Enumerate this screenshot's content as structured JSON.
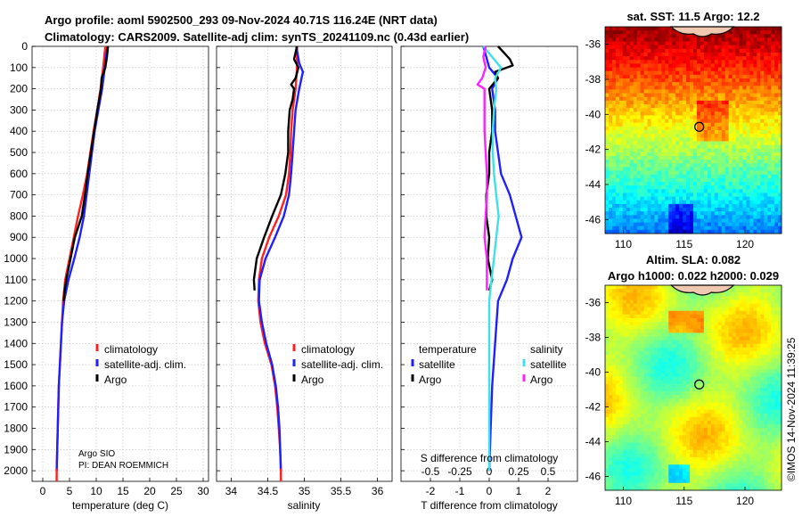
{
  "header": {
    "title_line1": "Argo profile: aoml 5902500_293 09-Nov-2024 40.71S 116.24E (NRT data)",
    "title_line2": "Climatology: CARS2009. Satellite-adj clim: synTS_20241109.nc (0.43d earlier)"
  },
  "credits": {
    "institution": "Argo SIO",
    "pi": "PI: DEAN ROEMMICH",
    "stamp": "©IMOS 14-Nov-2024 11:39:25"
  },
  "colors": {
    "climatology": "#ff2020",
    "satellite": "#1f1fff",
    "argo": "#000000",
    "sat_s": "#40e0e8",
    "argo_s": "#ff20ff"
  },
  "chart_data": [
    {
      "type": "line",
      "title": "",
      "xlabel": "temperature (deg C)",
      "ylabel": "",
      "xlim": [
        -2,
        31
      ],
      "ylim": [
        2050,
        0
      ],
      "xticks": [
        "0",
        "5",
        "10",
        "15",
        "20",
        "25",
        "30"
      ],
      "yticks": [
        "0",
        "100",
        "200",
        "300",
        "400",
        "500",
        "600",
        "700",
        "800",
        "900",
        "1000",
        "1100",
        "1200",
        "1300",
        "1400",
        "1500",
        "1600",
        "1700",
        "1800",
        "1900",
        "2000"
      ],
      "legend": [
        "climatology",
        "satellite-adj. clim.",
        "Argo"
      ],
      "series": [
        {
          "name": "climatology",
          "color": "#ff2020",
          "y": [
            0,
            100,
            200,
            300,
            400,
            500,
            600,
            700,
            800,
            900,
            1000,
            1100,
            1200,
            1300,
            1400,
            1500,
            1600,
            1700,
            1800,
            1900,
            2000
          ],
          "x": [
            11.7,
            11.3,
            10.8,
            10.2,
            9.5,
            8.9,
            8.3,
            7.5,
            6.6,
            5.8,
            5.0,
            4.2,
            3.8,
            3.6,
            3.4,
            3.2,
            3.0,
            2.9,
            2.8,
            2.7,
            2.6
          ]
        },
        {
          "name": "satellite-adj. clim.",
          "color": "#1f1fff",
          "y": [
            0,
            100,
            200,
            300,
            400,
            500,
            600,
            700,
            800,
            900,
            1000,
            1100,
            1200,
            1300,
            1400,
            1500,
            1600,
            1700,
            1800,
            1900,
            2000
          ],
          "x": [
            12.1,
            11.6,
            11.1,
            10.4,
            9.7,
            9.2,
            8.7,
            8.2,
            7.7,
            6.9,
            5.9,
            4.8,
            4.0,
            3.6,
            3.4,
            3.2,
            3.0,
            2.9,
            2.8,
            2.7,
            2.6
          ]
        },
        {
          "name": "Argo",
          "color": "#000000",
          "y": [
            0,
            50,
            100,
            150,
            200,
            300,
            400,
            500,
            600,
            700,
            800,
            900,
            1000,
            1100,
            1150,
            1200
          ],
          "x": [
            12.2,
            12.0,
            11.7,
            11.0,
            10.9,
            10.2,
            9.6,
            9.0,
            8.4,
            7.9,
            7.3,
            6.0,
            5.2,
            4.4,
            4.1,
            3.9
          ]
        }
      ]
    },
    {
      "type": "line",
      "xlabel": "salinity",
      "xlim": [
        33.8,
        36.2
      ],
      "ylim": [
        2050,
        0
      ],
      "xticks": [
        "34",
        "34.5",
        "35",
        "35.5",
        "36"
      ],
      "legend": [
        "climatology",
        "satellite-adj. clim.",
        "Argo"
      ],
      "series": [
        {
          "name": "climatology",
          "color": "#ff2020",
          "y": [
            0,
            100,
            200,
            300,
            400,
            500,
            600,
            700,
            800,
            900,
            1000,
            1100,
            1200,
            1300,
            1400,
            1500,
            1600,
            1700,
            1800,
            1900,
            2000
          ],
          "x": [
            34.9,
            34.9,
            34.88,
            34.84,
            34.82,
            34.81,
            34.79,
            34.75,
            34.65,
            34.52,
            34.42,
            34.38,
            34.37,
            34.4,
            34.46,
            34.55,
            34.6,
            34.63,
            34.65,
            34.67,
            34.68
          ]
        },
        {
          "name": "satellite-adj. clim.",
          "color": "#1f1fff",
          "y": [
            0,
            80,
            120,
            200,
            300,
            400,
            500,
            600,
            700,
            800,
            900,
            1000,
            1100,
            1200,
            1300,
            1400,
            1500,
            1600,
            1700,
            1800,
            1900,
            2000
          ],
          "x": [
            34.89,
            34.93,
            34.98,
            34.93,
            34.88,
            34.86,
            34.84,
            34.82,
            34.79,
            34.72,
            34.6,
            34.47,
            34.39,
            34.38,
            34.42,
            34.48,
            34.56,
            34.61,
            34.64,
            34.66,
            34.67,
            34.68
          ]
        },
        {
          "name": "Argo",
          "color": "#000000",
          "y": [
            0,
            60,
            100,
            150,
            180,
            200,
            250,
            300,
            400,
            500,
            600,
            700,
            800,
            900,
            1000,
            1100,
            1150
          ],
          "x": [
            34.9,
            34.86,
            34.92,
            34.88,
            34.82,
            34.86,
            34.84,
            34.8,
            34.78,
            34.78,
            34.74,
            34.68,
            34.56,
            34.45,
            34.35,
            34.31,
            34.32
          ]
        }
      ]
    },
    {
      "type": "line",
      "xlabel": "T difference from climatology",
      "xlabel2": "S difference from climatology",
      "xlim": [
        -3,
        3
      ],
      "ylim": [
        2050,
        0
      ],
      "xticks": [
        "-2",
        "-1",
        "0",
        "1",
        "2"
      ],
      "xticks_s": [
        "-0.5",
        "-0.25",
        "0",
        "0.25",
        "0.5"
      ],
      "legend_headers": [
        "temperature",
        "salinity"
      ],
      "legend_t": [
        "satellite",
        "Argo"
      ],
      "legend_s": [
        "satellite",
        "Argo"
      ],
      "series": [
        {
          "name": "T satellite",
          "color": "#1f1fff",
          "y": [
            0,
            50,
            100,
            150,
            200,
            300,
            400,
            500,
            600,
            700,
            800,
            900,
            1000,
            1100,
            1200,
            1400,
            1600,
            1800,
            2000
          ],
          "x": [
            -0.2,
            -0.1,
            0.0,
            0.3,
            0.1,
            0.2,
            0.2,
            0.3,
            0.4,
            0.7,
            0.9,
            1.1,
            0.8,
            0.6,
            0.3,
            0.2,
            0.1,
            0.05,
            0.0
          ]
        },
        {
          "name": "T Argo",
          "color": "#000000",
          "y": [
            0,
            30,
            60,
            90,
            120,
            150,
            200,
            300,
            400,
            500,
            600,
            700,
            800,
            900,
            1000,
            1100,
            1150
          ],
          "x": [
            0.3,
            0.5,
            0.7,
            0.8,
            0.2,
            0.3,
            0.0,
            0.1,
            0.1,
            0.0,
            0.0,
            -0.1,
            -0.1,
            0.0,
            -0.05,
            0.1,
            0.0
          ]
        },
        {
          "name": "S satellite",
          "color": "#40e0e8",
          "y": [
            0,
            100,
            150,
            200,
            300,
            400,
            500,
            600,
            700,
            800,
            900,
            1000,
            1100,
            1200,
            1400,
            1600,
            1800,
            2000
          ],
          "x": [
            -0.05,
            0.1,
            0.05,
            0.06,
            0.04,
            0.03,
            0.03,
            0.04,
            0.06,
            0.08,
            0.06,
            0.04,
            0.02,
            0.0,
            0.0,
            0.0,
            0.0,
            0.0
          ]
        },
        {
          "name": "S Argo",
          "color": "#ff20ff",
          "y": [
            0,
            50,
            100,
            150,
            180,
            200,
            250,
            300,
            400,
            500,
            600,
            700,
            800,
            900,
            1000,
            1100,
            1150
          ],
          "x": [
            -0.03,
            -0.05,
            -0.03,
            -0.06,
            -0.1,
            -0.04,
            -0.04,
            -0.04,
            -0.04,
            -0.03,
            -0.02,
            -0.02,
            -0.03,
            -0.04,
            -0.02,
            -0.02,
            -0.02
          ]
        }
      ]
    },
    {
      "type": "heatmap",
      "title": "sat. SST: 11.5 Argo: 12.2",
      "xlim": [
        108.5,
        123
      ],
      "ylim": [
        -46.8,
        -35
      ],
      "xticks": [
        "110",
        "115",
        "120"
      ],
      "yticks": [
        "-36",
        "-38",
        "-40",
        "-42",
        "-44",
        "-46"
      ],
      "marker": {
        "lon": 116.24,
        "lat": -40.71
      }
    },
    {
      "type": "heatmap",
      "title": "Altim. SLA: 0.082",
      "subtitle": "Argo h1000: 0.022 h2000: 0.029",
      "xlim": [
        108.5,
        123
      ],
      "ylim": [
        -46.8,
        -35
      ],
      "xticks": [
        "110",
        "115",
        "120"
      ],
      "yticks": [
        "-36",
        "-38",
        "-40",
        "-42",
        "-44",
        "-46"
      ],
      "marker": {
        "lon": 116.24,
        "lat": -40.71
      }
    }
  ]
}
